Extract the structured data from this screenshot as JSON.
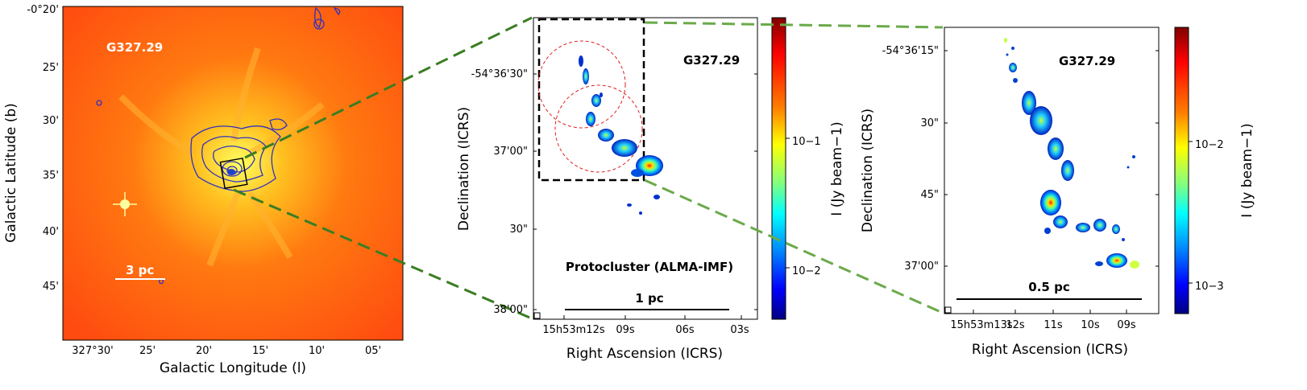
{
  "panels": {
    "left": {
      "source_label": "G327.29",
      "scalebar_label": "3 pc",
      "xlabel": "Galactic Longitude (l)",
      "ylabel": "Galactic Latitude (b)",
      "yticks": [
        "-0°20'",
        "25'",
        "30'",
        "35'",
        "40'",
        "45'"
      ],
      "xticks": [
        "327°30'",
        "25'",
        "20'",
        "15'",
        "10'",
        "05'"
      ]
    },
    "middle": {
      "source_label": "G327.29",
      "caption": "Protocluster (ALMA-IMF)",
      "scalebar_label": "1 pc",
      "xlabel": "Right Ascension (ICRS)",
      "ylabel": "Declination (ICRS)",
      "yticks": [
        "-54°36'30\"",
        "37'00\"",
        "30\"",
        "38'00\""
      ],
      "xticks": [
        "15h53m12s",
        "09s",
        "06s",
        "03s"
      ],
      "colorbar": {
        "label": "I (Jy beam−1)",
        "ticks": [
          "10−1",
          "10−2"
        ],
        "colors": [
          "#800000",
          "#ff0000",
          "#ff8000",
          "#ffff00",
          "#80ff80",
          "#00ffff",
          "#0080ff",
          "#0000ff",
          "#000080"
        ]
      }
    },
    "right": {
      "source_label": "G327.29",
      "scalebar_label": "0.5 pc",
      "xlabel": "Right Ascension (ICRS)",
      "ylabel": "Declination (ICRS)",
      "yticks": [
        "-54°36'15\"",
        "30\"",
        "45\"",
        "37'00\""
      ],
      "xticks": [
        "15h53m13s",
        "12s",
        "11s",
        "10s",
        "09s"
      ],
      "colorbar": {
        "label": "I (Jy beam−1)",
        "ticks": [
          "10−2",
          "10−3"
        ],
        "colors": [
          "#800000",
          "#ff0000",
          "#ff8000",
          "#ffff00",
          "#80ff80",
          "#00ffff",
          "#0080ff",
          "#0000ff",
          "#000080"
        ]
      }
    }
  },
  "colors": {
    "connector_dark": "#3a7d22",
    "connector_light": "#6aaa4a",
    "circle": "#e02020",
    "contour": "#3030c0"
  }
}
